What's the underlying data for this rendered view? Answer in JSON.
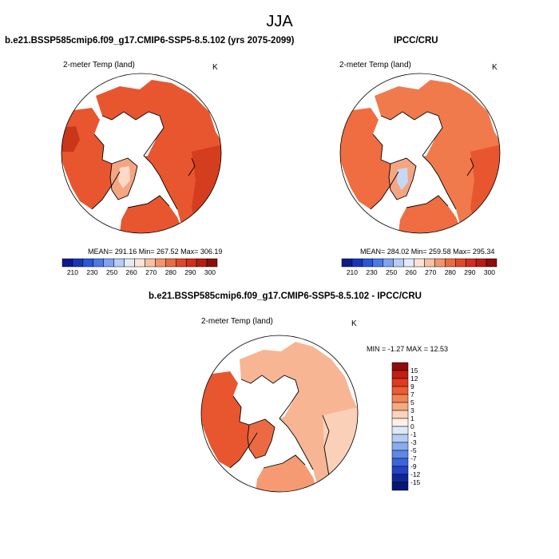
{
  "title": "JJA",
  "panels": [
    {
      "title": "b.e21.BSSP585cmip6.f09_g17.CMIP6-SSP5-8.5.102 (yrs 2075-2099)",
      "variable": "2-meter Temp (land)",
      "units": "K",
      "stats": "MEAN= 291.16  Min= 267.52  Max= 306.19",
      "colorbar_labels": [
        "210",
        "230",
        "250",
        "260",
        "270",
        "280",
        "290",
        "300"
      ]
    },
    {
      "title": "IPCC/CRU",
      "variable": "2-meter Temp (land)",
      "units": "K",
      "stats": "MEAN= 284.02  Min= 259.58  Max= 295.34",
      "colorbar_labels": [
        "210",
        "230",
        "250",
        "260",
        "270",
        "280",
        "290",
        "300"
      ]
    },
    {
      "title": "b.e21.BSSP585cmip6.f09_g17.CMIP6-SSP5-8.5.102 - IPCC/CRU",
      "variable": "2-meter Temp (land)",
      "units": "K",
      "stats": "MIN =  -1.27 MAX =  12.53",
      "colorbar_labels": [
        "15",
        "12",
        "9",
        "7",
        "5",
        "3",
        "1",
        "0",
        "-1",
        "-3",
        "-5",
        "-7",
        "-9",
        "-12",
        "-15"
      ]
    }
  ],
  "colors": {
    "abs_scale": [
      "#0b1a8e",
      "#1536b8",
      "#2a56d8",
      "#4a7be8",
      "#7ea4f0",
      "#b7ccf6",
      "#e4ecfa",
      "#fbe4d6",
      "#f8c1a3",
      "#f3956c",
      "#ec6a43",
      "#e2472a",
      "#d32d1b",
      "#b81d12",
      "#8e0d08"
    ],
    "diff_scale": [
      "#8e0d08",
      "#c21e12",
      "#de3b22",
      "#ec5c35",
      "#f28456",
      "#f5aa82",
      "#fad2bd",
      "#fdf0e8",
      "#dde8f8",
      "#b6ccf3",
      "#8aacee",
      "#5d88e6",
      "#3b64db",
      "#2244c2",
      "#0f2699",
      "#081575"
    ],
    "land_warm": "#e8562f",
    "land_hot": "#d43d1e",
    "land_cool": "#f4a582",
    "land_cold": "#fbd9c7",
    "ice": "#ffffff"
  }
}
